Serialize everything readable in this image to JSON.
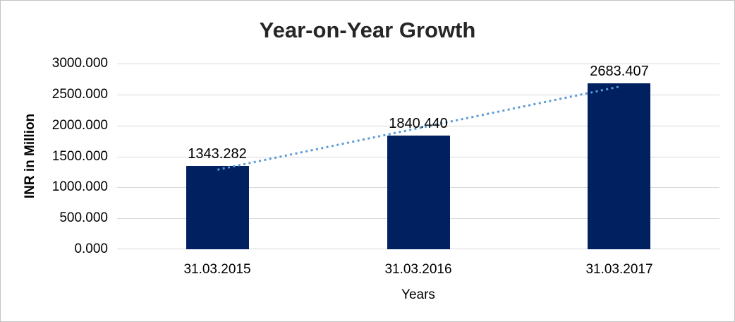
{
  "chart_data": {
    "type": "bar",
    "title": "Year-on-Year Growth",
    "xlabel": "Years",
    "ylabel": "INR in Million",
    "categories": [
      "31.03.2015",
      "31.03.2016",
      "31.03.2017"
    ],
    "values": [
      1343.282,
      1840.44,
      2683.407
    ],
    "data_labels": [
      "1343.282",
      "1840.440",
      "2683.407"
    ],
    "ylim": [
      0,
      3000
    ],
    "ytick_interval": 500,
    "ytick_labels": [
      "0.000",
      "500.000",
      "1000.000",
      "1500.000",
      "2000.000",
      "2500.000",
      "3000.000"
    ],
    "grid": true,
    "legend": "none",
    "trendline": {
      "kind": "linear",
      "style": "dotted"
    },
    "colors": {
      "bar": "#002060",
      "trendline": "#5b9bd5",
      "gridline": "#d9d9d9",
      "title_text": "#262626",
      "axis_text": "#000000",
      "frame_border": "#c3c3c3",
      "background": "#ffffff"
    }
  }
}
